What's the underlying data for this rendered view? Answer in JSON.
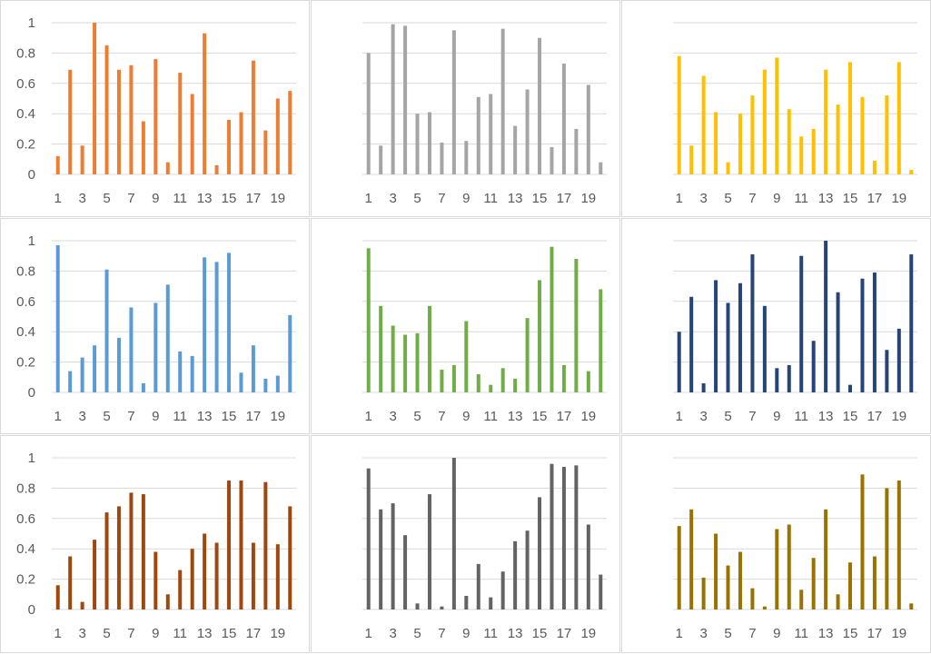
{
  "chart_data": [
    {
      "type": "bar",
      "color": "#ED7D31",
      "showYLabels": true,
      "ylim": [
        0,
        1
      ],
      "yticks": [
        0,
        0.2,
        0.4,
        0.6,
        0.8,
        1
      ],
      "yticklabels": [
        "0",
        "0.2",
        "0.4",
        "0.6",
        "0.8",
        "1"
      ],
      "categories": [
        1,
        2,
        3,
        4,
        5,
        6,
        7,
        8,
        9,
        10,
        11,
        12,
        13,
        14,
        15,
        16,
        17,
        18,
        19,
        20
      ],
      "xticklabels": [
        "1",
        "3",
        "5",
        "7",
        "9",
        "11",
        "13",
        "15",
        "17",
        "19"
      ],
      "values": [
        0.12,
        0.69,
        0.19,
        1.0,
        0.85,
        0.69,
        0.72,
        0.35,
        0.76,
        0.08,
        0.67,
        0.53,
        0.93,
        0.06,
        0.36,
        0.41,
        0.75,
        0.29,
        0.5,
        0.55
      ]
    },
    {
      "type": "bar",
      "color": "#A5A5A5",
      "showYLabels": false,
      "ylim": [
        0,
        1
      ],
      "yticks": [
        0,
        0.2,
        0.4,
        0.6,
        0.8,
        1
      ],
      "yticklabels": [],
      "categories": [
        1,
        2,
        3,
        4,
        5,
        6,
        7,
        8,
        9,
        10,
        11,
        12,
        13,
        14,
        15,
        16,
        17,
        18,
        19,
        20
      ],
      "xticklabels": [
        "1",
        "3",
        "5",
        "7",
        "9",
        "11",
        "13",
        "15",
        "17",
        "19"
      ],
      "values": [
        0.8,
        0.19,
        0.99,
        0.98,
        0.4,
        0.41,
        0.21,
        0.95,
        0.22,
        0.51,
        0.53,
        0.96,
        0.32,
        0.56,
        0.9,
        0.18,
        0.73,
        0.3,
        0.59,
        0.08
      ]
    },
    {
      "type": "bar",
      "color": "#FFC000",
      "showYLabels": false,
      "ylim": [
        0,
        1
      ],
      "yticks": [
        0,
        0.2,
        0.4,
        0.6,
        0.8,
        1
      ],
      "yticklabels": [],
      "categories": [
        1,
        2,
        3,
        4,
        5,
        6,
        7,
        8,
        9,
        10,
        11,
        12,
        13,
        14,
        15,
        16,
        17,
        18,
        19,
        20
      ],
      "xticklabels": [
        "1",
        "3",
        "5",
        "7",
        "9",
        "11",
        "13",
        "15",
        "17",
        "19"
      ],
      "values": [
        0.78,
        0.19,
        0.65,
        0.41,
        0.08,
        0.4,
        0.52,
        0.69,
        0.77,
        0.43,
        0.25,
        0.3,
        0.69,
        0.46,
        0.74,
        0.51,
        0.09,
        0.52,
        0.74,
        0.03
      ]
    },
    {
      "type": "bar",
      "color": "#5B9BD5",
      "showYLabels": true,
      "ylim": [
        0,
        1
      ],
      "yticks": [
        0,
        0.2,
        0.4,
        0.6,
        0.8,
        1
      ],
      "yticklabels": [
        "0",
        "0.2",
        "0.4",
        "0.6",
        "0.8",
        "1"
      ],
      "categories": [
        1,
        2,
        3,
        4,
        5,
        6,
        7,
        8,
        9,
        10,
        11,
        12,
        13,
        14,
        15,
        16,
        17,
        18,
        19,
        20
      ],
      "xticklabels": [
        "1",
        "3",
        "5",
        "7",
        "9",
        "11",
        "13",
        "15",
        "17",
        "19"
      ],
      "values": [
        0.97,
        0.14,
        0.23,
        0.31,
        0.81,
        0.36,
        0.56,
        0.06,
        0.59,
        0.71,
        0.27,
        0.24,
        0.89,
        0.86,
        0.92,
        0.13,
        0.31,
        0.09,
        0.11,
        0.51
      ]
    },
    {
      "type": "bar",
      "color": "#70AD47",
      "showYLabels": false,
      "ylim": [
        0,
        1
      ],
      "yticks": [
        0,
        0.2,
        0.4,
        0.6,
        0.8,
        1
      ],
      "yticklabels": [],
      "categories": [
        1,
        2,
        3,
        4,
        5,
        6,
        7,
        8,
        9,
        10,
        11,
        12,
        13,
        14,
        15,
        16,
        17,
        18,
        19,
        20
      ],
      "xticklabels": [
        "1",
        "3",
        "5",
        "7",
        "9",
        "11",
        "13",
        "15",
        "17",
        "19"
      ],
      "values": [
        0.95,
        0.57,
        0.44,
        0.38,
        0.39,
        0.57,
        0.15,
        0.18,
        0.47,
        0.12,
        0.05,
        0.16,
        0.09,
        0.49,
        0.74,
        0.96,
        0.18,
        0.88,
        0.14,
        0.68
      ]
    },
    {
      "type": "bar",
      "color": "#264478",
      "showYLabels": false,
      "ylim": [
        0,
        1
      ],
      "yticks": [
        0,
        0.2,
        0.4,
        0.6,
        0.8,
        1
      ],
      "yticklabels": [],
      "categories": [
        1,
        2,
        3,
        4,
        5,
        6,
        7,
        8,
        9,
        10,
        11,
        12,
        13,
        14,
        15,
        16,
        17,
        18,
        19,
        20
      ],
      "xticklabels": [
        "1",
        "3",
        "5",
        "7",
        "9",
        "11",
        "13",
        "15",
        "17",
        "19"
      ],
      "values": [
        0.4,
        0.63,
        0.06,
        0.74,
        0.59,
        0.72,
        0.91,
        0.57,
        0.16,
        0.18,
        0.9,
        0.34,
        1.0,
        0.66,
        0.05,
        0.75,
        0.79,
        0.28,
        0.42,
        0.91
      ]
    },
    {
      "type": "bar",
      "color": "#9E480E",
      "showYLabels": true,
      "ylim": [
        0,
        1
      ],
      "yticks": [
        0,
        0.2,
        0.4,
        0.6,
        0.8,
        1
      ],
      "yticklabels": [
        "0",
        "0.2",
        "0.4",
        "0.6",
        "0.8",
        "1"
      ],
      "categories": [
        1,
        2,
        3,
        4,
        5,
        6,
        7,
        8,
        9,
        10,
        11,
        12,
        13,
        14,
        15,
        16,
        17,
        18,
        19,
        20
      ],
      "xticklabels": [
        "1",
        "3",
        "5",
        "7",
        "9",
        "11",
        "13",
        "15",
        "17",
        "19"
      ],
      "values": [
        0.16,
        0.35,
        0.05,
        0.46,
        0.64,
        0.68,
        0.77,
        0.76,
        0.38,
        0.1,
        0.26,
        0.4,
        0.5,
        0.44,
        0.85,
        0.85,
        0.44,
        0.84,
        0.43,
        0.68
      ]
    },
    {
      "type": "bar",
      "color": "#636363",
      "showYLabels": false,
      "ylim": [
        0,
        1
      ],
      "yticks": [
        0,
        0.2,
        0.4,
        0.6,
        0.8,
        1
      ],
      "yticklabels": [],
      "categories": [
        1,
        2,
        3,
        4,
        5,
        6,
        7,
        8,
        9,
        10,
        11,
        12,
        13,
        14,
        15,
        16,
        17,
        18,
        19,
        20
      ],
      "xticklabels": [
        "1",
        "3",
        "5",
        "7",
        "9",
        "11",
        "13",
        "15",
        "17",
        "19"
      ],
      "values": [
        0.93,
        0.66,
        0.7,
        0.49,
        0.04,
        0.76,
        0.02,
        1.0,
        0.09,
        0.3,
        0.08,
        0.25,
        0.45,
        0.52,
        0.74,
        0.96,
        0.94,
        0.95,
        0.56,
        0.23
      ]
    },
    {
      "type": "bar",
      "color": "#997300",
      "showYLabels": false,
      "ylim": [
        0,
        1
      ],
      "yticks": [
        0,
        0.2,
        0.4,
        0.6,
        0.8,
        1
      ],
      "yticklabels": [],
      "categories": [
        1,
        2,
        3,
        4,
        5,
        6,
        7,
        8,
        9,
        10,
        11,
        12,
        13,
        14,
        15,
        16,
        17,
        18,
        19,
        20
      ],
      "xticklabels": [
        "1",
        "3",
        "5",
        "7",
        "9",
        "11",
        "13",
        "15",
        "17",
        "19"
      ],
      "values": [
        0.55,
        0.66,
        0.21,
        0.5,
        0.29,
        0.38,
        0.14,
        0.02,
        0.53,
        0.56,
        0.13,
        0.34,
        0.66,
        0.1,
        0.31,
        0.89,
        0.35,
        0.8,
        0.85,
        0.04
      ]
    }
  ]
}
